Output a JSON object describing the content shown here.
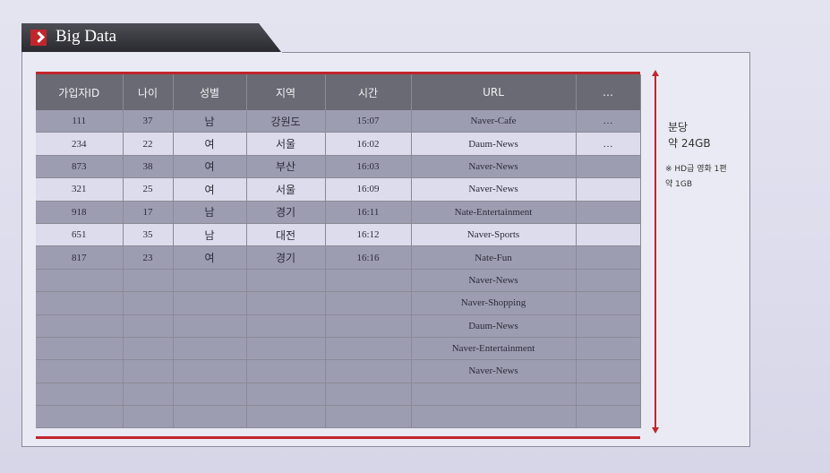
{
  "title": "Big Data",
  "table": {
    "headers": [
      "가입자ID",
      "나이",
      "성별",
      "지역",
      "시간",
      "URL",
      "…"
    ],
    "rows": [
      [
        "111",
        "37",
        "남",
        "강원도",
        "15:07",
        "Naver-Cafe",
        "…"
      ],
      [
        "234",
        "22",
        "여",
        "서울",
        "16:02",
        "Daum-News",
        "…"
      ],
      [
        "873",
        "38",
        "여",
        "부산",
        "16:03",
        "Naver-News",
        ""
      ],
      [
        "321",
        "25",
        "여",
        "서울",
        "16:09",
        "Naver-News",
        ""
      ],
      [
        "918",
        "17",
        "남",
        "경기",
        "16:11",
        "Nate-Entertainment",
        ""
      ],
      [
        "651",
        "35",
        "남",
        "대전",
        "16:12",
        "Naver-Sports",
        ""
      ],
      [
        "817",
        "23",
        "여",
        "경기",
        "16:16",
        "Nate-Fun",
        ""
      ],
      [
        "",
        "",
        "",
        "",
        "",
        "Naver-News",
        ""
      ],
      [
        "",
        "",
        "",
        "",
        "",
        "Naver-Shopping",
        ""
      ],
      [
        "",
        "",
        "",
        "",
        "",
        "Daum-News",
        ""
      ],
      [
        "",
        "",
        "",
        "",
        "",
        "Naver-Entertainment",
        ""
      ],
      [
        "",
        "",
        "",
        "",
        "",
        "Naver-News",
        ""
      ],
      [
        "",
        "",
        "",
        "",
        "",
        "",
        ""
      ],
      [
        "",
        "",
        "",
        "",
        "",
        "",
        ""
      ]
    ]
  },
  "side": {
    "line1": "분당",
    "line2": "약 24GB",
    "note1": "※ HD급 영화 1편",
    "note2": "약 1GB"
  },
  "colors": {
    "accent": "#c0262c",
    "header": "#6a6a74"
  }
}
